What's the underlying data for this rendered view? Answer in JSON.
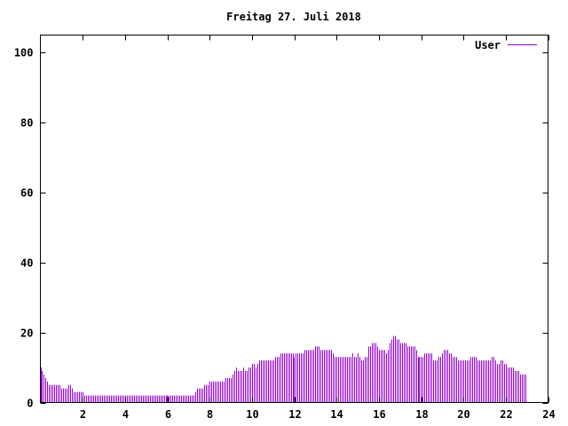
{
  "chart_data": {
    "type": "bar",
    "title": "Freitag 27. Juli 2018",
    "xlabel": "",
    "ylabel": "",
    "xlim": [
      0,
      24
    ],
    "ylim": [
      0,
      105
    ],
    "xticks": [
      2,
      4,
      6,
      8,
      10,
      12,
      14,
      16,
      18,
      20,
      22,
      24
    ],
    "yticks": [
      0,
      20,
      40,
      60,
      80,
      100
    ],
    "grid": false,
    "legend_position": "top-right",
    "series": [
      {
        "name": "User",
        "color": "#9400d3",
        "step_hours": 0.08333,
        "values": [
          10,
          9,
          8,
          7,
          6,
          5,
          5,
          5,
          5,
          5,
          5,
          5,
          4,
          4,
          4,
          4,
          5,
          5,
          4,
          3,
          3,
          3,
          3,
          3,
          3,
          2,
          2,
          2,
          2,
          2,
          2,
          2,
          2,
          2,
          2,
          2,
          2,
          2,
          2,
          2,
          2,
          2,
          2,
          2,
          2,
          2,
          2,
          2,
          2,
          2,
          2,
          2,
          2,
          2,
          2,
          2,
          2,
          2,
          2,
          2,
          2,
          2,
          2,
          2,
          2,
          2,
          2,
          2,
          2,
          2,
          2,
          2,
          2,
          2,
          2,
          2,
          2,
          2,
          2,
          2,
          2,
          2,
          2,
          2,
          2,
          2,
          2,
          2,
          3,
          4,
          4,
          4,
          4,
          5,
          5,
          5,
          6,
          6,
          6,
          6,
          6,
          6,
          6,
          6,
          6,
          7,
          7,
          7,
          7,
          8,
          9,
          10,
          9,
          9,
          9,
          10,
          9,
          9,
          10,
          10,
          11,
          11,
          10,
          11,
          12,
          12,
          12,
          12,
          12,
          12,
          12,
          12,
          12,
          13,
          13,
          13,
          14,
          14,
          14,
          14,
          14,
          14,
          14,
          14,
          13,
          14,
          14,
          14,
          14,
          14,
          15,
          15,
          15,
          15,
          15,
          15,
          16,
          16,
          16,
          15,
          15,
          15,
          15,
          15,
          15,
          15,
          14,
          13,
          13,
          13,
          13,
          13,
          13,
          13,
          13,
          13,
          13,
          14,
          13,
          13,
          14,
          13,
          12,
          12,
          13,
          13,
          16,
          16,
          17,
          17,
          17,
          16,
          15,
          15,
          15,
          15,
          14,
          15,
          17,
          18,
          19,
          19,
          18,
          18,
          17,
          17,
          17,
          17,
          16,
          16,
          16,
          16,
          16,
          15,
          13,
          13,
          13,
          13,
          14,
          14,
          14,
          14,
          14,
          12,
          12,
          12,
          13,
          13,
          14,
          15,
          15,
          15,
          14,
          14,
          13,
          13,
          13,
          12,
          12,
          12,
          12,
          12,
          12,
          12,
          13,
          13,
          13,
          13,
          12,
          12,
          12,
          12,
          12,
          12,
          12,
          12,
          13,
          13,
          12,
          11,
          11,
          12,
          12,
          11,
          11,
          10,
          10,
          10,
          10,
          9,
          9,
          9,
          8,
          8,
          8,
          8
        ]
      }
    ]
  }
}
